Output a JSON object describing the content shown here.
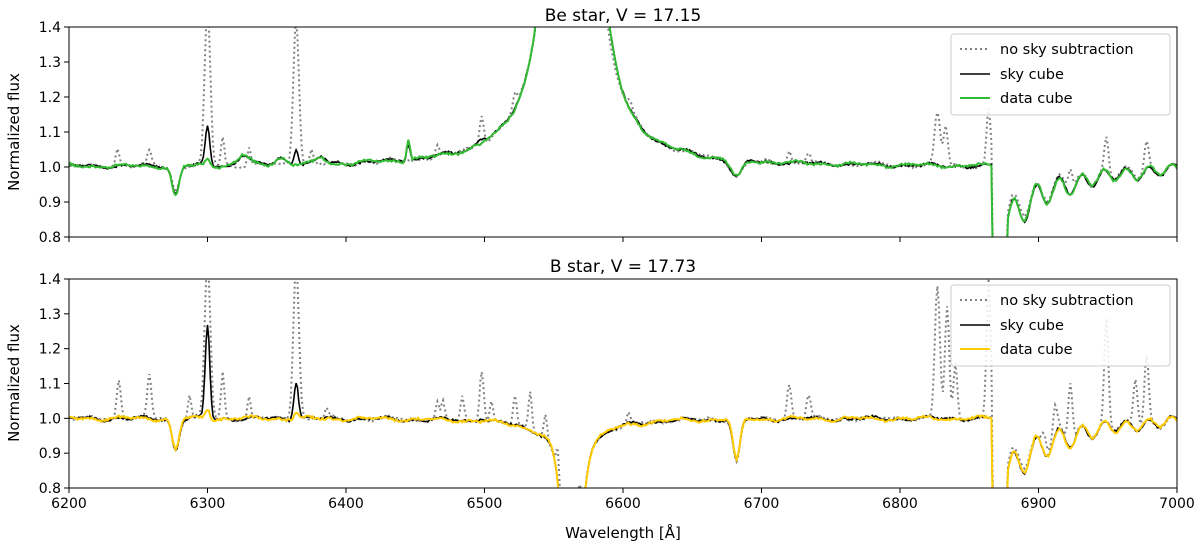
{
  "chart_data": [
    {
      "type": "line",
      "title": "Be star, V = 17.15",
      "xlabel": "",
      "ylabel": "Normalized flux",
      "xlim": [
        6200,
        7000
      ],
      "ylim": [
        0.8,
        1.4
      ],
      "xticks": [
        6200,
        6300,
        6400,
        6500,
        6600,
        6700,
        6800,
        6900,
        7000
      ],
      "yticks": [
        "0.8",
        "0.9",
        "1.0",
        "1.1",
        "1.2",
        "1.3",
        "1.4"
      ],
      "legend_position": "top-right",
      "emission": {
        "center": 6563,
        "peak": 6.0,
        "width": 7
      },
      "series": [
        {
          "name": "no sky subtraction",
          "color": "#808080",
          "style": "dotted",
          "features": [
            [
              6235,
              0.05,
              1.5
            ],
            [
              6258,
              0.04,
              1.5
            ],
            [
              6300,
              0.45,
              2
            ],
            [
              6311,
              0.08,
              1.2
            ],
            [
              6330,
              0.05,
              1.2
            ],
            [
              6364,
              0.42,
              2
            ],
            [
              6375,
              0.04,
              1.2
            ],
            [
              6466,
              0.03,
              1.5
            ],
            [
              6498,
              0.08,
              1.5
            ],
            [
              6522,
              0.04,
              1.5
            ],
            [
              6720,
              0.035,
              1.5
            ],
            [
              6734,
              0.03,
              1.5
            ],
            [
              6827,
              0.15,
              2
            ],
            [
              6833,
              0.11,
              1.5
            ],
            [
              6864,
              0.16,
              1.5
            ],
            [
              6923,
              0.06,
              1.5
            ],
            [
              6949,
              0.1,
              1.5
            ],
            [
              6978,
              0.08,
              1.5
            ],
            [
              6277,
              -0.07,
              2.5
            ],
            [
              6682,
              -0.05,
              4
            ],
            [
              6570,
              0.05,
              3
            ],
            [
              6605,
              0.02,
              2
            ]
          ]
        },
        {
          "name": "sky cube",
          "color": "#000000",
          "style": "solid",
          "features": [
            [
              6300,
              0.11,
              1.6
            ],
            [
              6364,
              0.045,
              1.6
            ],
            [
              6326,
              0.03,
              4
            ],
            [
              6353,
              0.02,
              4
            ],
            [
              6382,
              0.02,
              3
            ],
            [
              6445,
              0.05,
              1.2
            ],
            [
              6277,
              -0.08,
              2.5
            ],
            [
              6682,
              -0.05,
              4
            ],
            [
              6498,
              0.015,
              3
            ],
            [
              6545,
              0.04,
              5
            ],
            [
              6590,
              0.03,
              5
            ]
          ]
        },
        {
          "name": "data cube",
          "color": "#33bb33",
          "style": "solid",
          "features": [
            [
              6300,
              0.02,
              1.6
            ],
            [
              6326,
              0.03,
              4
            ],
            [
              6353,
              0.02,
              4
            ],
            [
              6382,
              0.02,
              3
            ],
            [
              6445,
              0.06,
              1.2
            ],
            [
              6277,
              -0.09,
              2.5
            ],
            [
              6682,
              -0.05,
              4
            ],
            [
              6545,
              0.035,
              5
            ],
            [
              6590,
              0.025,
              5
            ]
          ]
        }
      ]
    },
    {
      "type": "line",
      "title": "B star, V = 17.73",
      "xlabel": "Wavelength [Å]",
      "ylabel": "Normalized flux",
      "xlim": [
        6200,
        7000
      ],
      "ylim": [
        0.8,
        1.4
      ],
      "xticks": [
        6200,
        6300,
        6400,
        6500,
        6600,
        6700,
        6800,
        6900,
        7000
      ],
      "yticks": [
        "0.8",
        "0.9",
        "1.0",
        "1.1",
        "1.2",
        "1.3",
        "1.4"
      ],
      "legend_position": "top-right",
      "absorption": {
        "center": 6563,
        "depth": 0.95,
        "width": 5.5
      },
      "series": [
        {
          "name": "no sky subtraction",
          "color": "#808080",
          "style": "dotted",
          "features": [
            [
              6236,
              0.11,
              1.5
            ],
            [
              6258,
              0.12,
              1.5
            ],
            [
              6287,
              0.07,
              1.2
            ],
            [
              6300,
              0.45,
              2
            ],
            [
              6311,
              0.13,
              1.2
            ],
            [
              6330,
              0.06,
              1.2
            ],
            [
              6364,
              0.45,
              2
            ],
            [
              6386,
              0.03,
              1.2
            ],
            [
              6466,
              0.05,
              1.2
            ],
            [
              6470,
              0.05,
              1.2
            ],
            [
              6484,
              0.07,
              1.2
            ],
            [
              6498,
              0.15,
              1.5
            ],
            [
              6505,
              0.06,
              1.2
            ],
            [
              6522,
              0.08,
              1.2
            ],
            [
              6533,
              0.11,
              1.2
            ],
            [
              6544,
              0.07,
              1.2
            ],
            [
              6553,
              0.1,
              1.2
            ],
            [
              6568,
              0.25,
              1.5
            ],
            [
              6604,
              0.03,
              1.2
            ],
            [
              6720,
              0.1,
              1.5
            ],
            [
              6734,
              0.07,
              1.5
            ],
            [
              6827,
              0.38,
              1.8
            ],
            [
              6834,
              0.32,
              1.5
            ],
            [
              6840,
              0.16,
              1.3
            ],
            [
              6864,
              0.4,
              1.5
            ],
            [
              6904,
              0.05,
              1.5
            ],
            [
              6912,
              0.08,
              1.5
            ],
            [
              6923,
              0.17,
              1.5
            ],
            [
              6949,
              0.3,
              1.5
            ],
            [
              6970,
              0.14,
              1.5
            ],
            [
              6978,
              0.19,
              1.5
            ],
            [
              6277,
              -0.09,
              2.5
            ],
            [
              6682,
              -0.12,
              2.5
            ]
          ]
        },
        {
          "name": "sky cube",
          "color": "#000000",
          "style": "solid",
          "features": [
            [
              6300,
              0.27,
              1.6
            ],
            [
              6364,
              0.11,
              1.6
            ],
            [
              6277,
              -0.09,
              2.5
            ],
            [
              6682,
              -0.12,
              2.5
            ],
            [
              6498,
              0.01,
              3
            ]
          ]
        },
        {
          "name": "data cube",
          "color": "#ffcc00",
          "style": "solid",
          "features": [
            [
              6300,
              0.03,
              1.6
            ],
            [
              6364,
              0.02,
              1.6
            ],
            [
              6277,
              -0.09,
              2.5
            ],
            [
              6682,
              -0.12,
              2.5
            ]
          ]
        }
      ]
    }
  ]
}
